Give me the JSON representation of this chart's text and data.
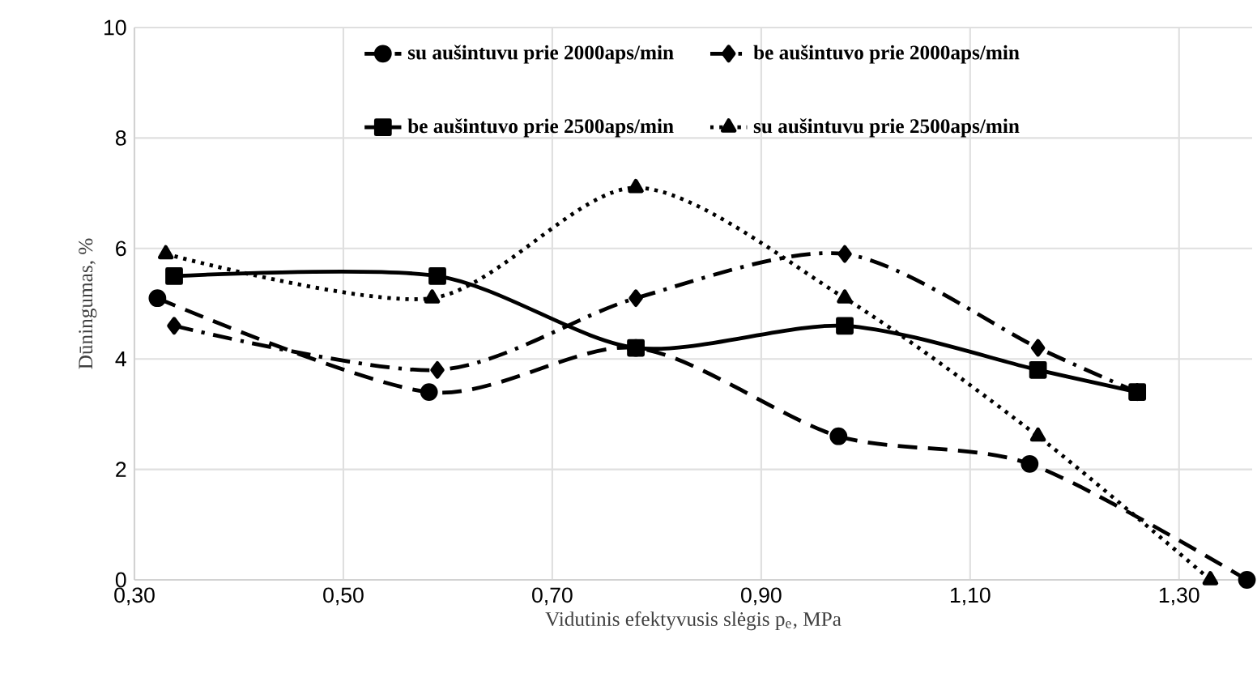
{
  "chart_data": {
    "type": "line",
    "xlabel": "Vidutinis efektyvusis slėgis p$_{e}$, MPa",
    "ylabel": "Dūningumas, %",
    "xlim": [
      0.3,
      1.37
    ],
    "ylim": [
      0,
      10
    ],
    "xticks": [
      {
        "value": 0.3,
        "label": "0,30"
      },
      {
        "value": 0.5,
        "label": "0,50"
      },
      {
        "value": 0.7,
        "label": "0,70"
      },
      {
        "value": 0.9,
        "label": "0,90"
      },
      {
        "value": 1.1,
        "label": "1,10"
      },
      {
        "value": 1.3,
        "label": "1,30"
      }
    ],
    "yticks": [
      0,
      2,
      4,
      6,
      8,
      10
    ],
    "grid": true,
    "legend": "top",
    "series": [
      {
        "name": "su aušintuvu prie 2000aps/min",
        "color": "#000000",
        "marker": "circle",
        "line_style": "dashed",
        "x": [
          0.322,
          0.582,
          0.78,
          0.974,
          1.157,
          1.365
        ],
        "values": [
          5.1,
          3.4,
          4.2,
          2.6,
          2.1,
          0.0
        ]
      },
      {
        "name": "be aušintuvo prie 2000aps/min",
        "color": "#000000",
        "marker": "diamond",
        "line_style": "dashdot",
        "x": [
          0.338,
          0.59,
          0.78,
          0.98,
          1.165,
          1.26
        ],
        "values": [
          4.6,
          3.8,
          5.1,
          5.9,
          4.2,
          3.4
        ]
      },
      {
        "name": "be aušintuvo prie 2500aps/min",
        "color": "#000000",
        "marker": "square",
        "line_style": "solid",
        "x": [
          0.338,
          0.59,
          0.78,
          0.98,
          1.165,
          1.26
        ],
        "values": [
          5.5,
          5.5,
          4.2,
          4.6,
          3.8,
          3.4
        ]
      },
      {
        "name": "su aušintuvu prie 2500aps/min",
        "color": "#000000",
        "marker": "triangle",
        "line_style": "dotted",
        "x": [
          0.33,
          0.585,
          0.78,
          0.98,
          1.165,
          1.33
        ],
        "values": [
          5.9,
          5.1,
          7.1,
          5.1,
          2.6,
          0.0
        ]
      }
    ]
  }
}
